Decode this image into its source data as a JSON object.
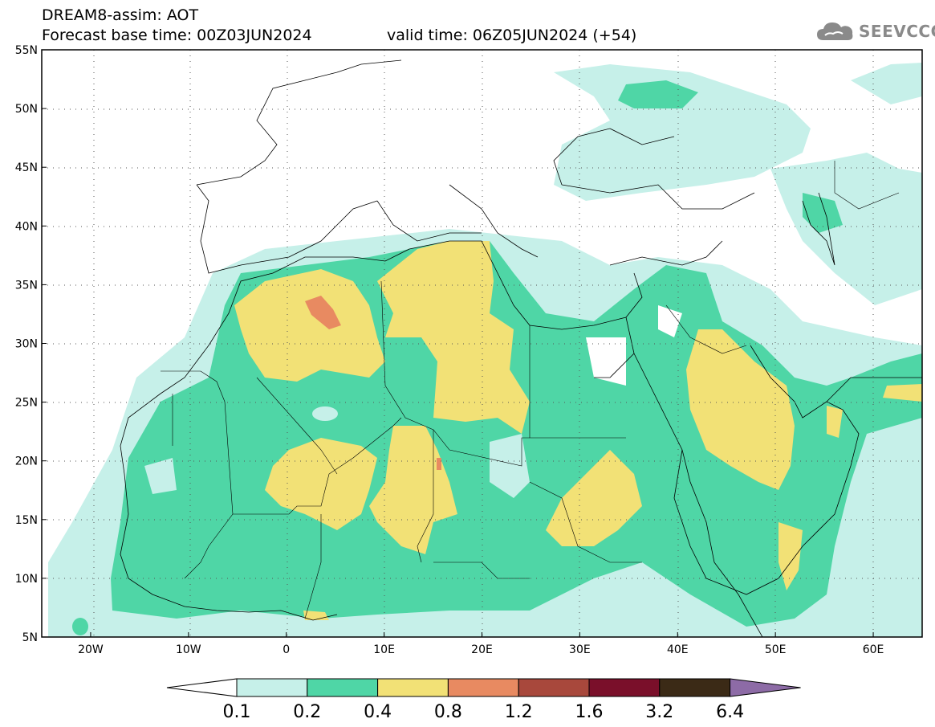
{
  "header": {
    "line1": "DREAM8-assim: AOT",
    "line2": "Forecast base time: 00Z03JUN2024",
    "valid": "valid time: 06Z05JUN2024 (+54)"
  },
  "logo": {
    "text": "SEEVCCC",
    "icon": "cloud-icon",
    "color": "#8a8a8a"
  },
  "map": {
    "lon_range": [
      -25,
      65
    ],
    "lat_range": [
      5,
      55
    ],
    "lat_ticks": [
      {
        "value": 55,
        "label": "55N"
      },
      {
        "value": 50,
        "label": "50N"
      },
      {
        "value": 45,
        "label": "45N"
      },
      {
        "value": 40,
        "label": "40N"
      },
      {
        "value": 35,
        "label": "35N"
      },
      {
        "value": 30,
        "label": "30N"
      },
      {
        "value": 25,
        "label": "25N"
      },
      {
        "value": 20,
        "label": "20N"
      },
      {
        "value": 15,
        "label": "15N"
      },
      {
        "value": 10,
        "label": "10N"
      },
      {
        "value": 5,
        "label": "5N"
      }
    ],
    "lon_ticks": [
      {
        "value": -20,
        "label": "20W"
      },
      {
        "value": -10,
        "label": "10W"
      },
      {
        "value": 0,
        "label": "0"
      },
      {
        "value": 10,
        "label": "10E"
      },
      {
        "value": 20,
        "label": "20E"
      },
      {
        "value": 30,
        "label": "30E"
      },
      {
        "value": 40,
        "label": "40E"
      },
      {
        "value": 50,
        "label": "50E"
      },
      {
        "value": 60,
        "label": "60E"
      }
    ],
    "grid": "dotted"
  },
  "colorbar": {
    "labels": [
      "0.1",
      "0.2",
      "0.4",
      "0.8",
      "1.2",
      "1.6",
      "3.2",
      "6.4"
    ],
    "colors": [
      "#ffffff",
      "#c6f0e9",
      "#4fd6a6",
      "#f2e176",
      "#e88a61",
      "#a8483c",
      "#7a0f2a",
      "#3b2a16",
      "#8d6ba6"
    ]
  }
}
